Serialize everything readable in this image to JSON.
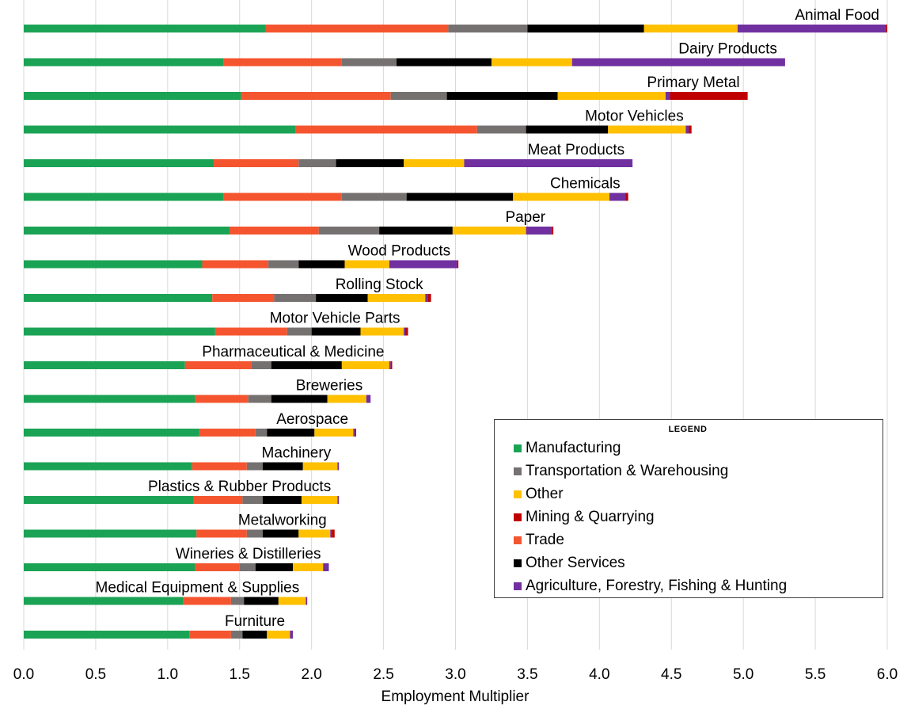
{
  "chart_data": {
    "type": "bar",
    "orientation": "horizontal",
    "stacked": true,
    "xlabel": "Employment Multiplier",
    "ylabel": "",
    "xlim": [
      0,
      6.0
    ],
    "xticks": [
      "0.0",
      "0.5",
      "1.0",
      "1.5",
      "2.0",
      "2.5",
      "3.0",
      "3.5",
      "4.0",
      "4.5",
      "5.0",
      "5.5",
      "6.0"
    ],
    "grid": "vertical",
    "legend": {
      "title": "LEGEND",
      "placement": "bottom-right",
      "items": [
        "Manufacturing",
        "Transportation & Warehousing",
        "Other",
        "Mining & Quarrying",
        "Trade",
        "Other Services",
        "Agriculture, Forestry, Fishing & Hunting"
      ]
    },
    "categories": [
      "Animal Food",
      "Dairy Products",
      "Primary Metal",
      "Motor Vehicles",
      "Meat Products",
      "Chemicals",
      "Paper",
      "Wood Products",
      "Rolling Stock",
      "Motor Vehicle Parts",
      "Pharmaceutical & Medicine",
      "Breweries",
      "Aerospace",
      "Machinery",
      "Plastics & Rubber Products",
      "Metalworking",
      "Wineries & Distilleries",
      "Medical Equipment & Supplies",
      "Furniture"
    ],
    "series": [
      {
        "name": "Manufacturing",
        "color": "#1BA355",
        "values": [
          1.68,
          1.39,
          1.51,
          1.89,
          1.32,
          1.39,
          1.43,
          1.24,
          1.31,
          1.33,
          1.12,
          1.19,
          1.22,
          1.17,
          1.18,
          1.2,
          1.19,
          1.11,
          1.15
        ]
      },
      {
        "name": "Trade",
        "color": "#F4552F",
        "values": [
          1.27,
          0.82,
          1.04,
          1.26,
          0.59,
          0.82,
          0.62,
          0.46,
          0.43,
          0.5,
          0.46,
          0.37,
          0.39,
          0.38,
          0.34,
          0.35,
          0.31,
          0.33,
          0.29
        ]
      },
      {
        "name": "Transportation & Warehousing",
        "color": "#767171",
        "values": [
          0.55,
          0.38,
          0.39,
          0.34,
          0.26,
          0.45,
          0.42,
          0.21,
          0.29,
          0.17,
          0.14,
          0.16,
          0.08,
          0.11,
          0.14,
          0.11,
          0.11,
          0.09,
          0.08
        ]
      },
      {
        "name": "Other Services",
        "color": "#000000",
        "values": [
          0.81,
          0.66,
          0.77,
          0.57,
          0.47,
          0.74,
          0.51,
          0.32,
          0.36,
          0.34,
          0.49,
          0.39,
          0.33,
          0.28,
          0.27,
          0.25,
          0.26,
          0.24,
          0.17
        ]
      },
      {
        "name": "Other",
        "color": "#FFC000",
        "values": [
          0.65,
          0.56,
          0.75,
          0.54,
          0.42,
          0.67,
          0.51,
          0.31,
          0.4,
          0.3,
          0.33,
          0.27,
          0.27,
          0.24,
          0.25,
          0.22,
          0.21,
          0.19,
          0.16
        ]
      },
      {
        "name": "Agriculture, Forestry, Fishing & Hunting",
        "color": "#7030A0",
        "values": [
          1.03,
          1.48,
          0.03,
          0.02,
          1.17,
          0.11,
          0.18,
          0.47,
          0.02,
          0.01,
          0.01,
          0.03,
          0.01,
          0.01,
          0.01,
          0.01,
          0.04,
          0.01,
          0.02
        ]
      },
      {
        "name": "Mining & Quarrying",
        "color": "#C00000",
        "values": [
          0.01,
          0.0,
          0.54,
          0.02,
          0.0,
          0.02,
          0.01,
          0.01,
          0.02,
          0.02,
          0.01,
          0.0,
          0.01,
          0.0,
          0.0,
          0.02,
          0.0,
          0.0,
          0.0
        ]
      }
    ]
  }
}
